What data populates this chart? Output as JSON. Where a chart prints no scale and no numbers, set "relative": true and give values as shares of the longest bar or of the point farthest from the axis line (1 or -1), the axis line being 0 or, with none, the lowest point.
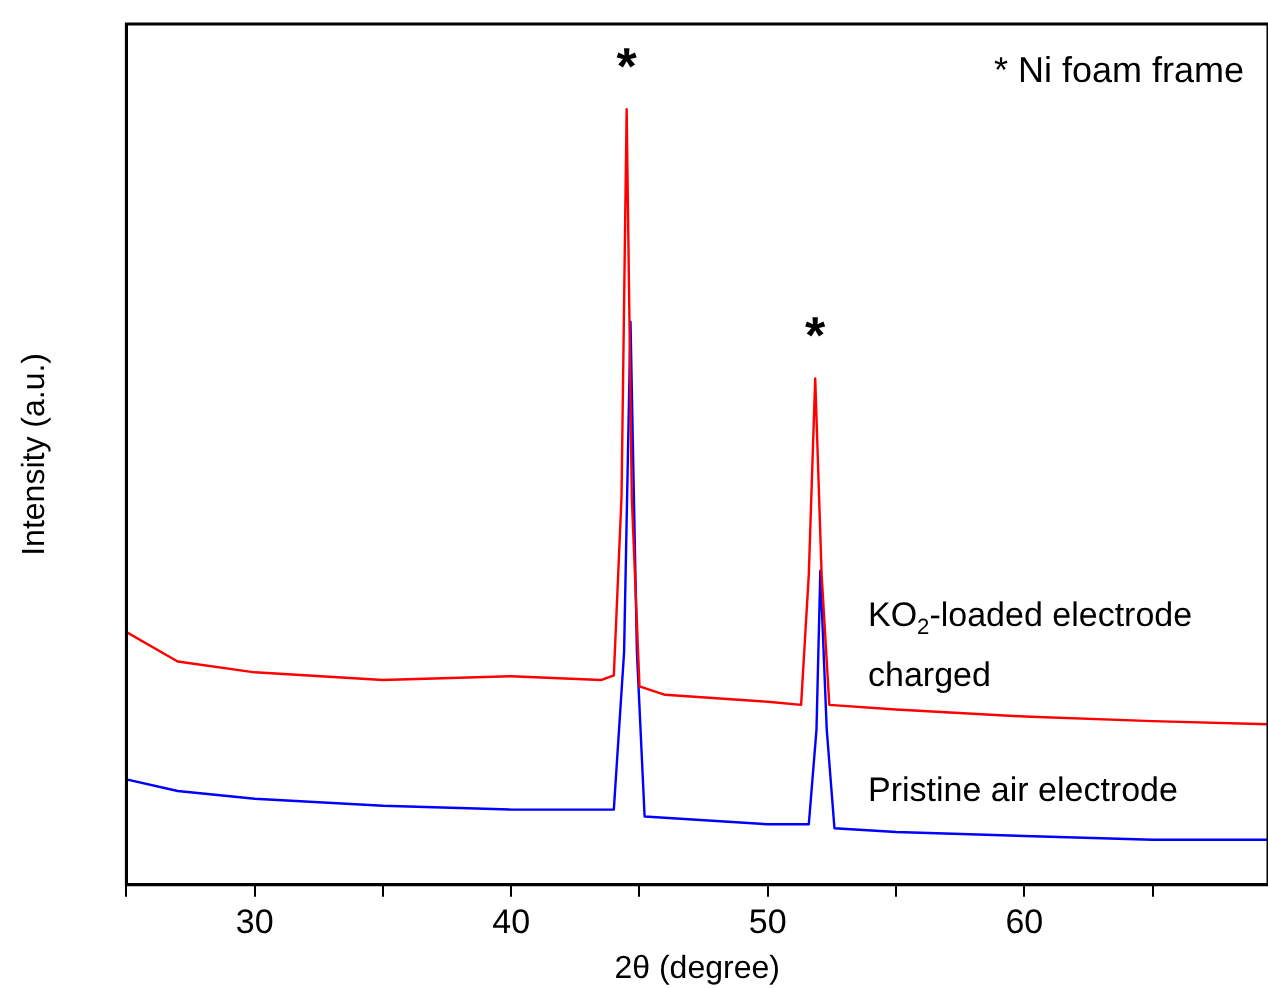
{
  "chart_data": {
    "type": "line",
    "relative": true,
    "xlabel": "2θ (degree)",
    "ylabel": "Intensity (a.u.)",
    "xlim": [
      25,
      69.5
    ],
    "xticks": [
      {
        "value": 25,
        "label": null
      },
      30,
      {
        "value": 35,
        "label": null
      },
      40,
      {
        "value": 45,
        "label": null
      },
      50,
      {
        "value": 55,
        "label": null
      },
      60,
      {
        "value": 65,
        "label": null
      }
    ],
    "grid": false,
    "legend": false,
    "marker": "none",
    "line_style": "solid",
    "series": [
      {
        "name": "KO$_{2}$-loaded electrode charged",
        "color": "#ff0000",
        "x": [
          25,
          27,
          30,
          35,
          40,
          43.5,
          44.0,
          44.3,
          44.5,
          44.7,
          45.0,
          46,
          50,
          51.3,
          51.6,
          51.85,
          52.1,
          52.4,
          55,
          60,
          65,
          69.5
        ],
        "values": [
          0.326,
          0.288,
          0.274,
          0.264,
          0.269,
          0.264,
          0.27,
          0.5,
          1.0,
          0.5,
          0.256,
          0.245,
          0.236,
          0.232,
          0.4,
          0.653,
          0.4,
          0.232,
          0.226,
          0.217,
          0.211,
          0.207
        ]
      },
      {
        "name": "Pristine air electrode",
        "color": "#0000ff",
        "x": [
          25,
          27,
          30,
          35,
          40,
          44.0,
          44.4,
          44.65,
          44.9,
          45.2,
          50,
          51.6,
          51.9,
          52.05,
          52.3,
          52.6,
          55,
          60,
          65,
          69.5
        ],
        "values": [
          0.136,
          0.121,
          0.111,
          0.102,
          0.097,
          0.097,
          0.3,
          0.726,
          0.3,
          0.088,
          0.078,
          0.078,
          0.2,
          0.405,
          0.2,
          0.073,
          0.068,
          0.063,
          0.058,
          0.058
        ]
      }
    ],
    "annotations": [
      {
        "text": "*",
        "x": 44.5,
        "y": 1.0
      },
      {
        "text": "*",
        "x": 51.85,
        "y": 0.653
      },
      "* Ni foam frame"
    ]
  }
}
